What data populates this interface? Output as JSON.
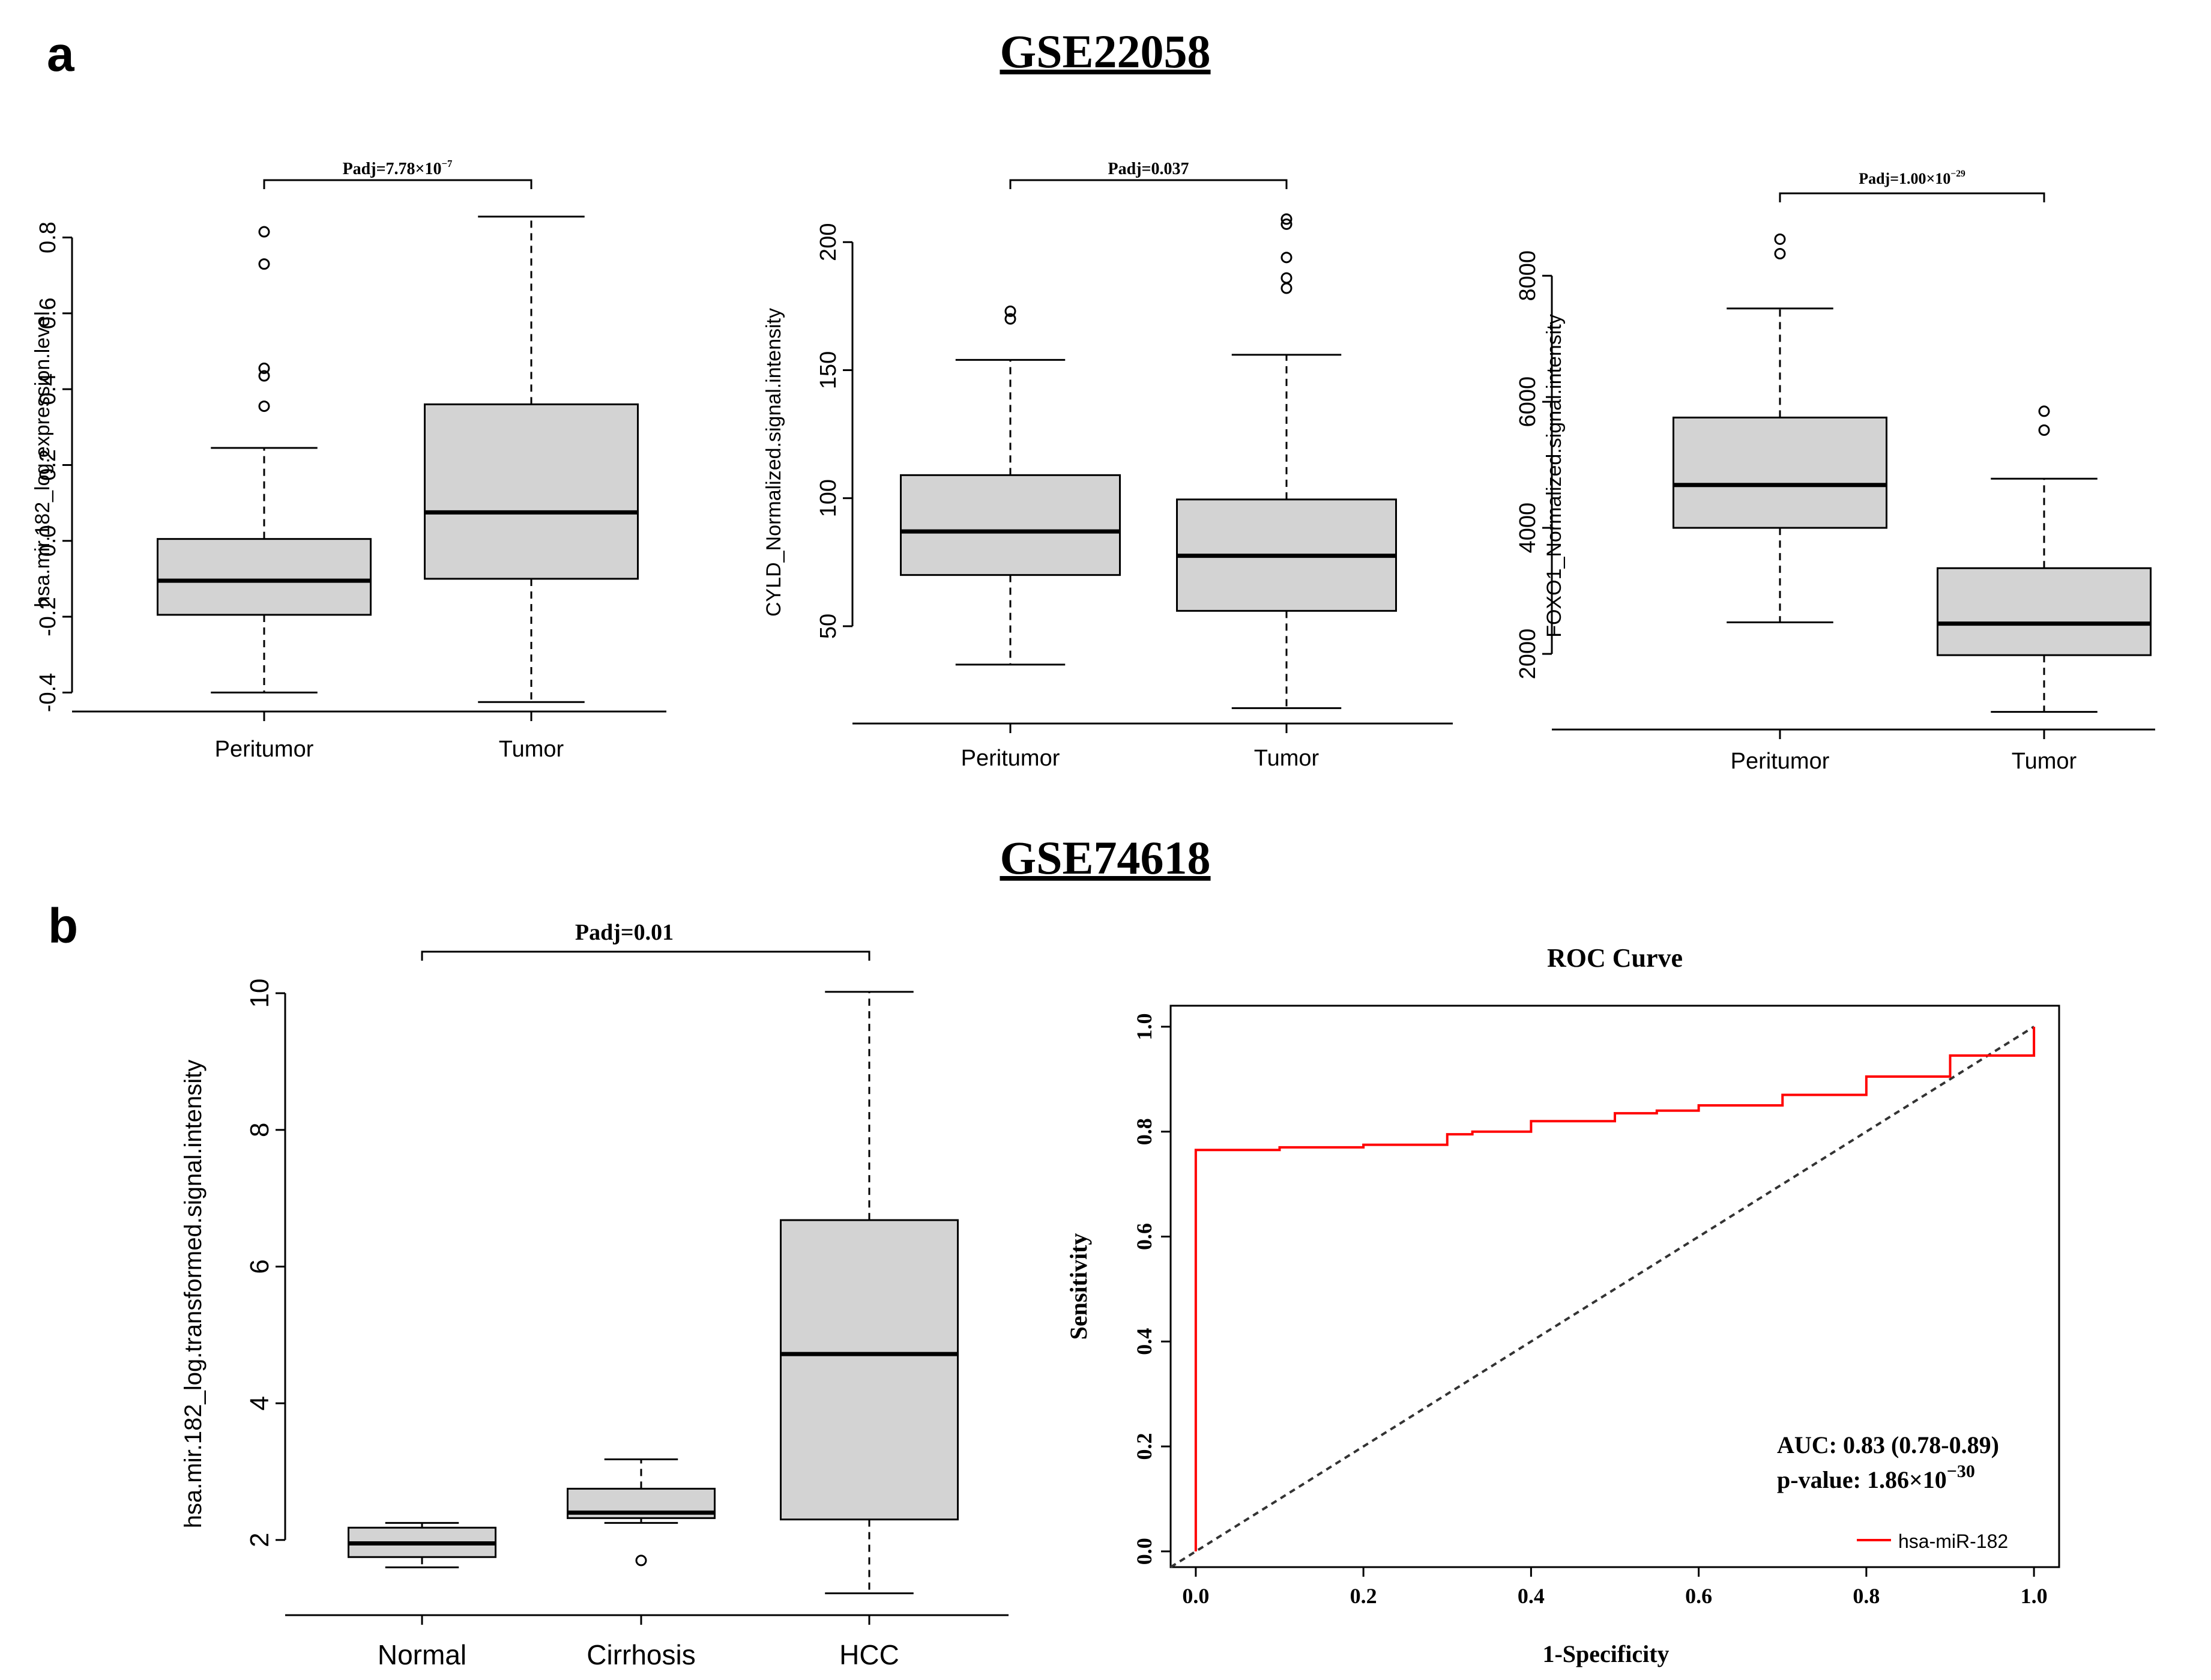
{
  "panel_labels": {
    "a": "a",
    "b": "b"
  },
  "section_titles": {
    "a": "GSE22058",
    "b": "GSE74618"
  },
  "colors": {
    "box_fill": "#d3d3d3",
    "roc_line": "#ff0000",
    "diagonal": "#333333"
  },
  "chart_data": [
    {
      "type": "box",
      "panel": "a1",
      "categories": [
        "Peritumor",
        "Tumor"
      ],
      "ylabel": "hsa.mir.182_log.expression.level",
      "yticks": [
        -0.4,
        -0.2,
        0.0,
        0.2,
        0.4,
        0.6,
        0.8
      ],
      "ytick_labels": [
        "-0.4",
        "-0.2",
        "0.0",
        "0.2",
        "0.4",
        "0.6",
        "0.8"
      ],
      "ylim": [
        -0.45,
        0.88
      ],
      "annotation": {
        "prefix": "Padj=7.78×10",
        "exponent": "−7"
      },
      "boxes": [
        {
          "whislo": -0.4,
          "q1": -0.195,
          "med": -0.105,
          "q3": 0.005,
          "whishi": 0.245,
          "fliers": [
            0.355,
            0.435,
            0.455,
            0.73,
            0.815
          ]
        },
        {
          "whislo": -0.425,
          "q1": -0.1,
          "med": 0.075,
          "q3": 0.36,
          "whishi": 0.855,
          "fliers": []
        }
      ]
    },
    {
      "type": "box",
      "panel": "a2",
      "categories": [
        "Peritumor",
        "Tumor"
      ],
      "ylabel": "CYLD_Normalized.signal.intensity",
      "yticks": [
        50,
        100,
        150,
        200
      ],
      "ytick_labels": [
        "50",
        "100",
        "150",
        "200"
      ],
      "ylim": [
        12,
        216
      ],
      "annotation": {
        "prefix": "Padj=0.037",
        "exponent": ""
      },
      "boxes": [
        {
          "whislo": 35,
          "q1": 70,
          "med": 87,
          "q3": 109,
          "whishi": 154,
          "fliers": [
            170,
            173
          ]
        },
        {
          "whislo": 18,
          "q1": 56,
          "med": 77.5,
          "q3": 99.5,
          "whishi": 156,
          "fliers": [
            182,
            186,
            194,
            207,
            209
          ]
        }
      ]
    },
    {
      "type": "box",
      "panel": "a3",
      "categories": [
        "Peritumor",
        "Tumor"
      ],
      "ylabel": "FOXO1_Normalized.signal.intensity",
      "yticks": [
        2000,
        4000,
        6000,
        8000
      ],
      "ytick_labels": [
        "2000",
        "4000",
        "6000",
        "8000"
      ],
      "ylim": [
        800,
        8850
      ],
      "annotation": {
        "prefix": "Padj=1.00×10",
        "exponent": "−29"
      },
      "boxes": [
        {
          "whislo": 2500,
          "q1": 4000,
          "med": 4680,
          "q3": 5750,
          "whishi": 7480,
          "fliers": [
            8350,
            8580
          ]
        },
        {
          "whislo": 1080,
          "q1": 1980,
          "med": 2480,
          "q3": 3360,
          "whishi": 4780,
          "fliers": [
            5550,
            5850
          ]
        }
      ]
    },
    {
      "type": "box",
      "panel": "b1",
      "categories": [
        "Normal",
        "Cirrhosis",
        "HCC"
      ],
      "ylabel": "hsa.mir.182_log.transformed.signal.intensity",
      "yticks": [
        2,
        4,
        6,
        8,
        10
      ],
      "ytick_labels": [
        "2",
        "4",
        "6",
        "8",
        "10"
      ],
      "ylim": [
        0.9,
        10.3
      ],
      "annotation": {
        "prefix": "Padj=0.01",
        "exponent": ""
      },
      "boxes": [
        {
          "whislo": 1.6,
          "q1": 1.75,
          "med": 1.95,
          "q3": 2.18,
          "whishi": 2.25,
          "fliers": []
        },
        {
          "whislo": 2.25,
          "q1": 2.32,
          "med": 2.4,
          "q3": 2.75,
          "whishi": 3.18,
          "fliers": [
            1.7
          ]
        },
        {
          "whislo": 1.22,
          "q1": 2.3,
          "med": 4.72,
          "q3": 6.68,
          "whishi": 10.02,
          "fliers": []
        }
      ]
    },
    {
      "type": "line",
      "panel": "b2",
      "title": "ROC Curve",
      "xlabel": "1-Specificity",
      "ylabel": "Sensitivity",
      "xlim": [
        -0.03,
        1.03
      ],
      "ylim": [
        -0.03,
        1.04
      ],
      "xticks": [
        0.0,
        0.2,
        0.4,
        0.6,
        0.8,
        1.0
      ],
      "xtick_labels": [
        "0.0",
        "0.2",
        "0.4",
        "0.6",
        "0.8",
        "1.0"
      ],
      "yticks": [
        0.0,
        0.2,
        0.4,
        0.6,
        0.8,
        1.0
      ],
      "ytick_labels": [
        "0.0",
        "0.2",
        "0.4",
        "0.6",
        "0.8",
        "1.0"
      ],
      "series": [
        {
          "name": "hsa-miR-182",
          "color": "#ff0000",
          "x": [
            0.0,
            0.0,
            0.0,
            0.1,
            0.1,
            0.2,
            0.2,
            0.3,
            0.3,
            0.33,
            0.33,
            0.4,
            0.4,
            0.5,
            0.5,
            0.55,
            0.55,
            0.6,
            0.6,
            0.7,
            0.7,
            0.8,
            0.8,
            0.9,
            0.9,
            1.0,
            1.0
          ],
          "y": [
            0.0,
            0.765,
            0.765,
            0.765,
            0.77,
            0.77,
            0.775,
            0.775,
            0.795,
            0.795,
            0.8,
            0.8,
            0.82,
            0.82,
            0.835,
            0.835,
            0.84,
            0.84,
            0.85,
            0.85,
            0.87,
            0.87,
            0.905,
            0.905,
            0.945,
            0.945,
            1.0
          ]
        },
        {
          "name": "reference",
          "color": "#333333",
          "dashed": true,
          "x": [
            -0.03,
            1.0
          ],
          "y": [
            -0.03,
            1.0
          ]
        }
      ],
      "auc_text": "AUC: 0.83 (0.78-0.89)",
      "pvalue": {
        "prefix": "p-value: 1.86×10",
        "exponent": "−30"
      },
      "legend": {
        "label": "hsa-miR-182",
        "position": "bottom-right"
      }
    }
  ]
}
